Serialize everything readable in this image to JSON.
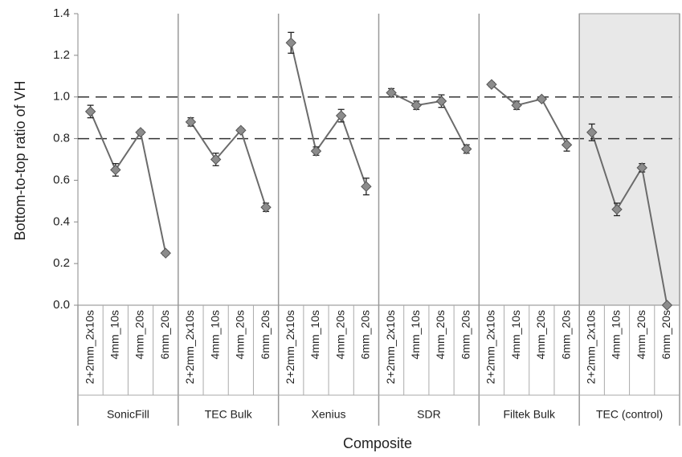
{
  "chart_data": {
    "type": "grouped-line",
    "y_label": "Bottom-to-top ratio of VH",
    "x_label": "Composite",
    "categories": [
      "2+2mm_2x10s",
      "4mm_10s",
      "4mm_20s",
      "6mm_20s"
    ],
    "groups": [
      {
        "name": "SonicFill",
        "values": [
          0.93,
          0.65,
          0.83,
          0.25
        ],
        "errors": [
          0.03,
          0.03,
          0.01,
          0.01
        ]
      },
      {
        "name": "TEC Bulk",
        "values": [
          0.88,
          0.7,
          0.84,
          0.47
        ],
        "errors": [
          0.02,
          0.03,
          0.01,
          0.02
        ]
      },
      {
        "name": "Xenius",
        "values": [
          1.26,
          0.74,
          0.91,
          0.57
        ],
        "errors": [
          0.05,
          0.02,
          0.03,
          0.04
        ]
      },
      {
        "name": "SDR",
        "values": [
          1.02,
          0.96,
          0.98,
          0.75
        ],
        "errors": [
          0.02,
          0.02,
          0.03,
          0.02
        ]
      },
      {
        "name": "Filtek Bulk",
        "values": [
          1.06,
          0.96,
          0.99,
          0.77
        ],
        "errors": [
          0.01,
          0.02,
          0.01,
          0.03
        ]
      },
      {
        "name": "TEC (control)",
        "values": [
          0.83,
          0.46,
          0.66,
          0.0
        ],
        "errors": [
          0.04,
          0.03,
          0.02,
          0.0
        ]
      }
    ],
    "shaded_group": "TEC (control)",
    "reference_lines": [
      0.8,
      1.0
    ],
    "marker_color": "#8c8c8c",
    "line_color": "#6b6b6b",
    "ylim": [
      0,
      1.4
    ],
    "yticks": [
      {
        "value": 0,
        "label": "0.0"
      },
      0.2,
      0.4,
      0.6,
      0.8,
      {
        "value": 1,
        "label": "1.0"
      },
      1.2,
      1.4
    ]
  }
}
